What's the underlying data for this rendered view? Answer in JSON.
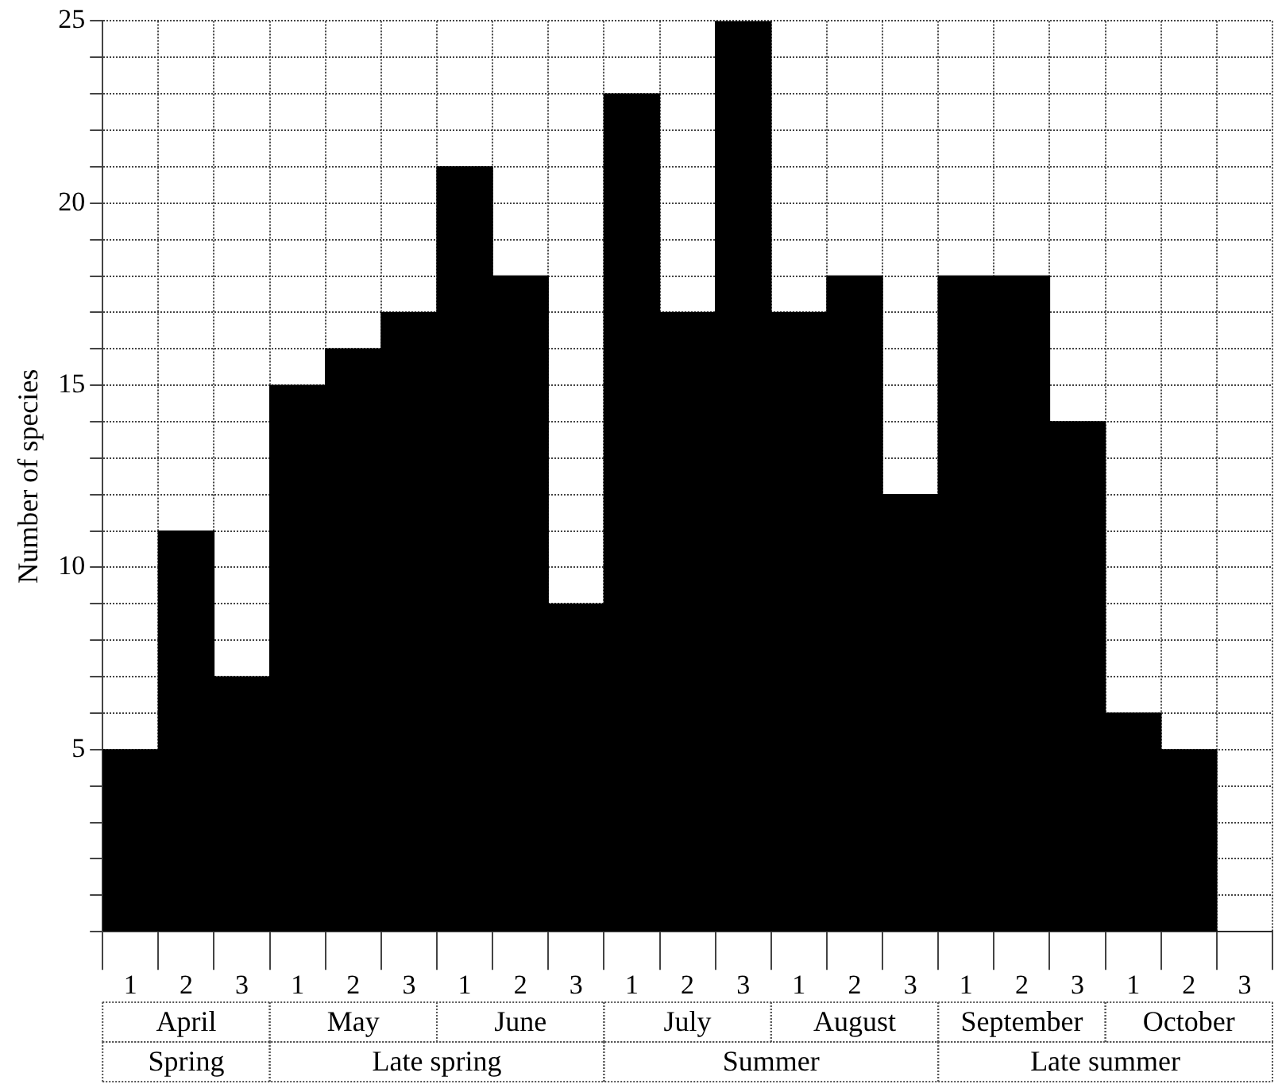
{
  "chart_data": {
    "type": "bar",
    "ylabel": "Number of species",
    "categories": [
      "1",
      "2",
      "3",
      "1",
      "2",
      "3",
      "1",
      "2",
      "3",
      "1",
      "2",
      "3",
      "1",
      "2",
      "3",
      "1",
      "2",
      "3",
      "1",
      "2",
      "3"
    ],
    "values": [
      5,
      11,
      7,
      15,
      16,
      17,
      21,
      18,
      9,
      23,
      17,
      25,
      17,
      18,
      12,
      18,
      18,
      14,
      6,
      5,
      0
    ],
    "color": "#000000",
    "ylim": [
      0,
      25
    ],
    "yticks": [
      {
        "value": 0,
        "label": null
      },
      {
        "value": 1,
        "label": null
      },
      {
        "value": 2,
        "label": null
      },
      {
        "value": 3,
        "label": null
      },
      {
        "value": 4,
        "label": null
      },
      5,
      {
        "value": 6,
        "label": null
      },
      {
        "value": 7,
        "label": null
      },
      {
        "value": 8,
        "label": null
      },
      {
        "value": 9,
        "label": null
      },
      10,
      {
        "value": 11,
        "label": null
      },
      {
        "value": 12,
        "label": null
      },
      {
        "value": 13,
        "label": null
      },
      {
        "value": 14,
        "label": null
      },
      15,
      {
        "value": 16,
        "label": null
      },
      {
        "value": 17,
        "label": null
      },
      {
        "value": 18,
        "label": null
      },
      {
        "value": 19,
        "label": null
      },
      20,
      {
        "value": 21,
        "label": null
      },
      {
        "value": 22,
        "label": null
      },
      {
        "value": 23,
        "label": null
      },
      {
        "value": 24,
        "label": null
      },
      25
    ],
    "grid": true,
    "annotations": [
      "April",
      "May",
      "June",
      "July",
      "August",
      "September",
      "October",
      "Spring",
      "Late spring",
      "Summer",
      "Late summer"
    ]
  }
}
